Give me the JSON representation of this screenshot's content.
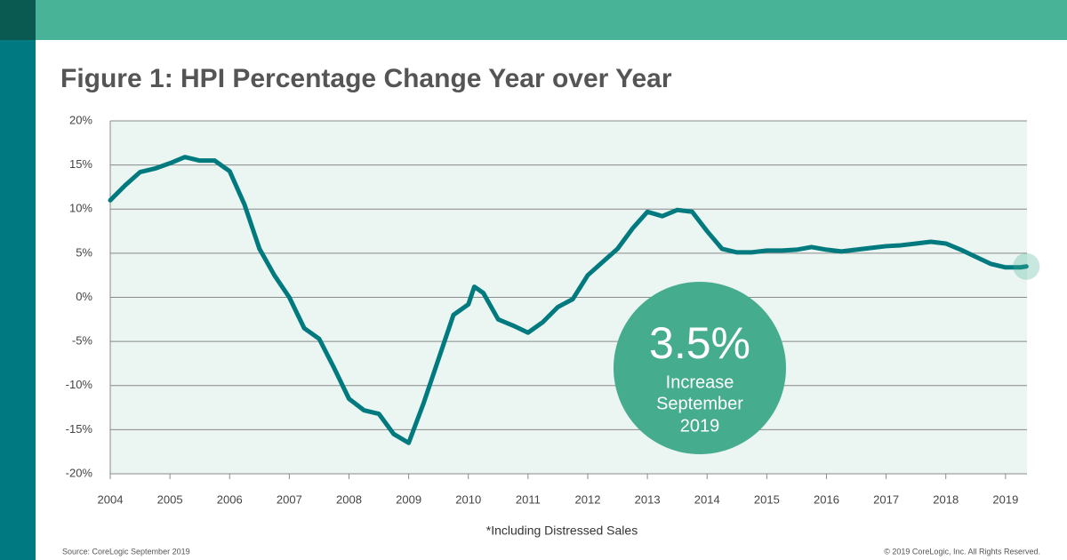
{
  "chart_data": {
    "type": "line",
    "title": "Figure 1: HPI Percentage Change Year over Year",
    "x": [
      2004.0,
      2004.25,
      2004.5,
      2004.75,
      2005.0,
      2005.25,
      2005.5,
      2005.75,
      2006.0,
      2006.25,
      2006.5,
      2006.75,
      2007.0,
      2007.25,
      2007.5,
      2007.75,
      2008.0,
      2008.25,
      2008.5,
      2008.75,
      2009.0,
      2009.25,
      2009.5,
      2009.75,
      2010.0,
      2010.1,
      2010.25,
      2010.5,
      2010.75,
      2011.0,
      2011.25,
      2011.5,
      2011.75,
      2012.0,
      2012.25,
      2012.5,
      2012.75,
      2013.0,
      2013.25,
      2013.5,
      2013.75,
      2014.0,
      2014.25,
      2014.5,
      2014.75,
      2015.0,
      2015.25,
      2015.5,
      2015.75,
      2016.0,
      2016.25,
      2016.5,
      2016.75,
      2017.0,
      2017.25,
      2017.5,
      2017.75,
      2018.0,
      2018.25,
      2018.5,
      2018.75,
      2019.0,
      2019.25,
      2019.35
    ],
    "series": [
      {
        "name": "HPI year-over-year change",
        "color": "#007a7e",
        "values": [
          11,
          12.7,
          14.2,
          14.6,
          15.2,
          15.9,
          15.5,
          15.5,
          14.3,
          10.5,
          5.5,
          2.5,
          0,
          -3.5,
          -4.7,
          -8,
          -11.5,
          -12.8,
          -13.2,
          -15.5,
          -16.5,
          -12,
          -7,
          -2,
          -0.8,
          1.2,
          0.5,
          -2.5,
          -3.2,
          -4,
          -2.8,
          -1.1,
          -0.2,
          2.5,
          4,
          5.5,
          7.8,
          9.7,
          9.2,
          9.9,
          9.7,
          7.5,
          5.5,
          5.1,
          5.1,
          5.3,
          5.3,
          5.4,
          5.7,
          5.4,
          5.2,
          5.4,
          5.6,
          5.8,
          5.9,
          6.1,
          6.3,
          6.1,
          5.4,
          4.6,
          3.8,
          3.4,
          3.4,
          3.5
        ]
      }
    ],
    "xlim": [
      2004,
      2019.36
    ],
    "xticks": [
      2004,
      2005,
      2006,
      2007,
      2008,
      2009,
      2010,
      2011,
      2012,
      2013,
      2014,
      2015,
      2016,
      2017,
      2018,
      2019
    ],
    "ylim": [
      -20,
      20
    ],
    "yticks": [
      {
        "value": -20,
        "label": "-20%"
      },
      {
        "value": -15,
        "label": "-15%"
      },
      {
        "value": -10,
        "label": "-10%"
      },
      {
        "value": -5,
        "label": "-5%"
      },
      {
        "value": 0,
        "label": "0%"
      },
      {
        "value": 5,
        "label": "5%"
      },
      {
        "value": 10,
        "label": "10%"
      },
      {
        "value": 15,
        "label": "15%"
      },
      {
        "value": 20,
        "label": "20%"
      }
    ],
    "grid": true,
    "callout": [
      "3.5%",
      "Increase",
      "September",
      "2019"
    ],
    "note": "*Including Distressed Sales",
    "source": "Source: CoreLogic September 2019",
    "copyright": "© 2019 CoreLogic, Inc. All Rights Reserved."
  }
}
